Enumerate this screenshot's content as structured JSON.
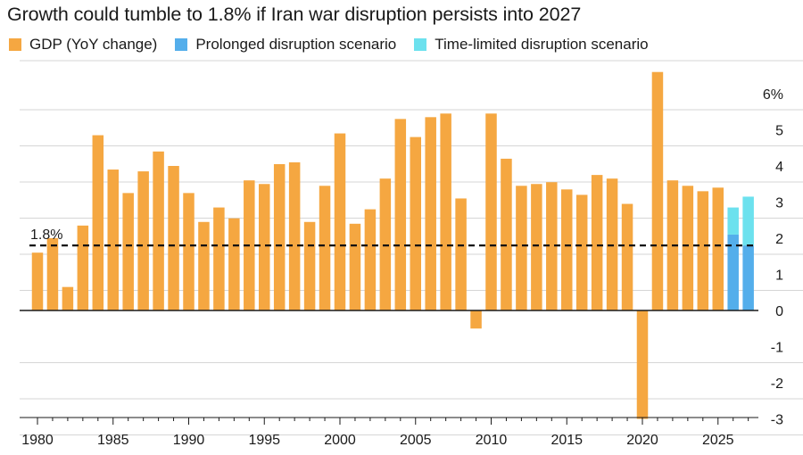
{
  "title": "Growth could tumble to 1.8% if Iran war disruption persists into 2027",
  "legend": [
    {
      "label": "GDP (YoY change)",
      "color": "#F5A741"
    },
    {
      "label": "Prolonged disruption scenario",
      "color": "#54AEEB"
    },
    {
      "label": "Time-limited disruption scenario",
      "color": "#6CE1EE"
    }
  ],
  "chart_data": {
    "type": "bar",
    "title": "Growth could tumble to 1.8% if Iran war disruption persists into 2027",
    "xlabel": "",
    "ylabel": "",
    "ylim": [
      -3,
      6.5
    ],
    "grid": true,
    "yticks": [
      "6%",
      "5",
      "4",
      "3",
      "2",
      "1",
      "0",
      "-1",
      "-2",
      "-3"
    ],
    "ytick_values": [
      6,
      5,
      4,
      3,
      2,
      1,
      0,
      -1,
      -2,
      -3
    ],
    "xticks": [
      "1980",
      "1985",
      "1990",
      "1995",
      "2000",
      "2005",
      "2010",
      "2015",
      "2020",
      "2025"
    ],
    "xtick_values": [
      1980,
      1985,
      1990,
      1995,
      2000,
      2005,
      2010,
      2015,
      2020,
      2025
    ],
    "reference_line": {
      "value": 1.8,
      "label": "1.8%",
      "style": "dashed"
    },
    "series": [
      {
        "name": "GDP (YoY change)",
        "color": "#F5A741",
        "x": [
          1980,
          1981,
          1982,
          1983,
          1984,
          1985,
          1986,
          1987,
          1988,
          1989,
          1990,
          1991,
          1992,
          1993,
          1994,
          1995,
          1996,
          1997,
          1998,
          1999,
          2000,
          2001,
          2002,
          2003,
          2004,
          2005,
          2006,
          2007,
          2008,
          2009,
          2010,
          2011,
          2012,
          2013,
          2014,
          2015,
          2016,
          2017,
          2018,
          2019,
          2020,
          2021,
          2022,
          2023,
          2024,
          2025
        ],
        "values": [
          1.6,
          2.0,
          0.65,
          2.35,
          4.85,
          3.9,
          3.25,
          3.85,
          4.4,
          4.0,
          3.25,
          2.45,
          2.85,
          2.55,
          3.6,
          3.5,
          4.05,
          4.1,
          2.45,
          3.45,
          4.9,
          2.4,
          2.8,
          3.65,
          5.3,
          4.8,
          5.35,
          5.45,
          3.1,
          -0.5,
          5.45,
          4.2,
          3.45,
          3.5,
          3.55,
          3.35,
          3.2,
          3.75,
          3.65,
          2.95,
          -3.0,
          6.6,
          3.6,
          3.45,
          3.3,
          3.4
        ]
      },
      {
        "name": "Prolonged disruption scenario",
        "color": "#54AEEB",
        "x": [
          2026,
          2027
        ],
        "values": [
          2.1,
          1.8
        ]
      },
      {
        "name": "Time-limited disruption scenario",
        "color": "#6CE1EE",
        "x": [
          2026,
          2027
        ],
        "values": [
          2.85,
          3.15
        ]
      }
    ]
  }
}
